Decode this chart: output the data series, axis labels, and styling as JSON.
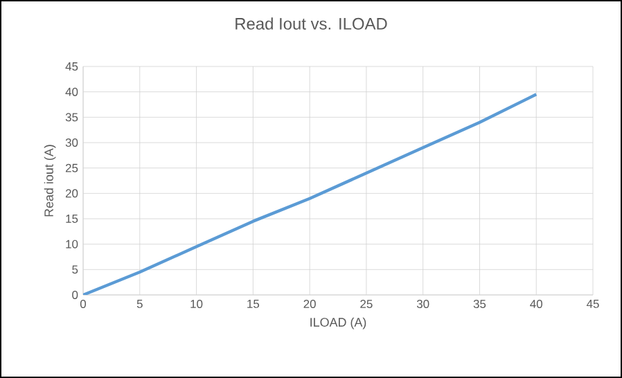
{
  "chart_data": {
    "type": "line",
    "title": "Read Iout vs. ILOAD",
    "xlabel": "ILOAD (A)",
    "ylabel": "Read iout (A)",
    "x": [
      0,
      5,
      10,
      15,
      20,
      25,
      30,
      35,
      40
    ],
    "series": [
      {
        "color": "#5b9bd5",
        "values": [
          0,
          4.5,
          9.5,
          14.5,
          19,
          24,
          29,
          34,
          39.5
        ]
      }
    ],
    "xlim": [
      0,
      45
    ],
    "ylim": [
      0,
      45
    ],
    "xticks": [
      0,
      5,
      10,
      15,
      20,
      25,
      30,
      35,
      40,
      45
    ],
    "yticks": [
      0,
      5,
      10,
      15,
      20,
      25,
      30,
      35,
      40,
      45
    ],
    "grid": true,
    "marker": "none",
    "line_style": "solid"
  }
}
